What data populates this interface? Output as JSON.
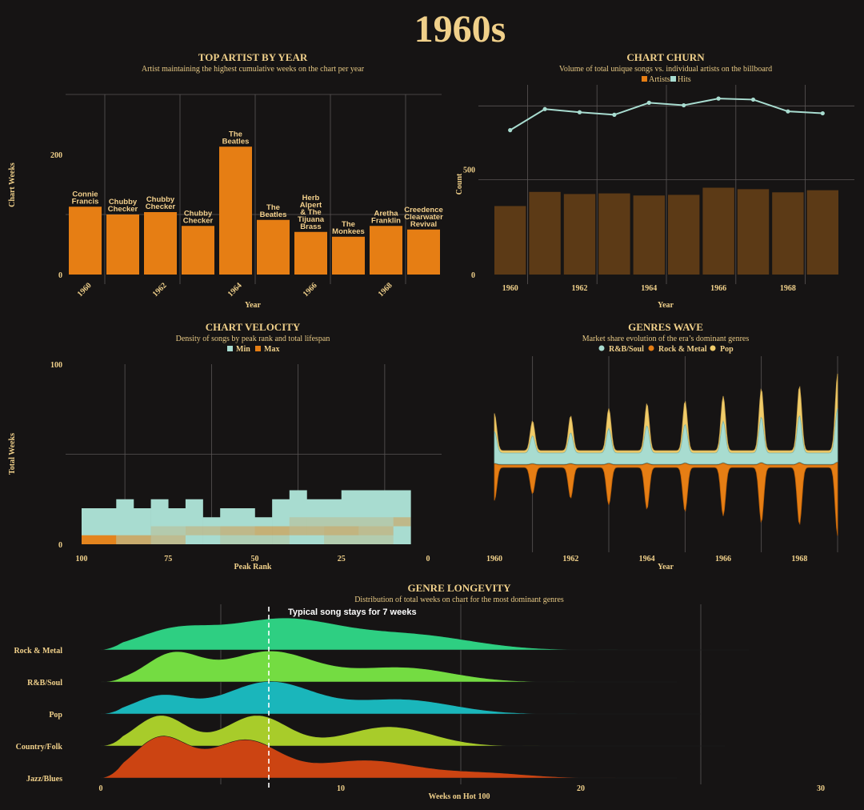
{
  "page_title": "1960s",
  "colors": {
    "background": "#161414",
    "title": "#f0d08a",
    "orange": "#e67e14",
    "teal": "#a8dcd0",
    "gold": "#f0cc6a",
    "brown": "#5c3a16"
  },
  "chart_data": [
    {
      "id": "top_artist",
      "type": "bar",
      "title": "TOP ARTIST BY YEAR",
      "subtitle": "Artist maintaining the highest cumulative weeks on the chart per year",
      "xlabel": "Year",
      "ylabel": "Chart Weeks",
      "categories": [
        "1960",
        "1961",
        "1962",
        "1963",
        "1964",
        "1965",
        "1966",
        "1967",
        "1968",
        "1969"
      ],
      "tick_labels": [
        "1960",
        "1962",
        "1964",
        "1966",
        "1968"
      ],
      "y_ticks": [
        "0",
        "200"
      ],
      "ylim": [
        0,
        300
      ],
      "values": [
        113,
        100,
        104,
        81,
        213,
        91,
        71,
        63,
        81,
        75
      ],
      "labels": [
        "Connie\nFrancis",
        "Chubby\nChecker",
        "Chubby\nChecker",
        "Chubby\nChecker",
        "The\nBeatles",
        "The\nBeatles",
        "Herb\nAlpert\n& The\nTijuana\nBrass",
        "The\nMonkees",
        "Aretha\nFranklin",
        "Creedence\nClearwater\nRevival"
      ]
    },
    {
      "id": "chart_churn",
      "type": "bar",
      "title": "CHART CHURN",
      "subtitle": "Volume of total unique songs vs. individual artists on the billboard",
      "xlabel": "Year",
      "ylabel": "Count",
      "legend": [
        "Artists",
        "Hits"
      ],
      "legend_position": "top",
      "categories": [
        "1960",
        "1961",
        "1962",
        "1963",
        "1964",
        "1965",
        "1966",
        "1967",
        "1968",
        "1969"
      ],
      "tick_labels": [
        "1960",
        "1962",
        "1964",
        "1966",
        "1968"
      ],
      "y_ticks": [
        "0",
        "500"
      ],
      "ylim": [
        0,
        900
      ],
      "series": [
        {
          "name": "Artists",
          "values": [
            325,
            392,
            382,
            385,
            375,
            378,
            412,
            405,
            390,
            400
          ]
        },
        {
          "name": "Hits",
          "values": [
            685,
            785,
            770,
            758,
            815,
            803,
            835,
            830,
            774,
            765
          ]
        }
      ]
    },
    {
      "id": "chart_velocity",
      "type": "heatmap",
      "title": "CHART VELOCITY",
      "subtitle": "Density of songs by peak rank and total lifespan",
      "xlabel": "Peak Rank",
      "ylabel": "Total Weeks",
      "legend": [
        "Min",
        "Max"
      ],
      "x_ticks": [
        "100",
        "75",
        "50",
        "25",
        "0"
      ],
      "y_ticks": [
        "0",
        "100"
      ],
      "xlim": [
        100,
        0
      ],
      "ylim": [
        0,
        100
      ],
      "columns": [
        {
          "x0": 100,
          "x1": 90,
          "top": 20
        },
        {
          "x0": 90,
          "x1": 85,
          "top": 25
        },
        {
          "x0": 85,
          "x1": 80,
          "top": 20
        },
        {
          "x0": 80,
          "x1": 75,
          "top": 25
        },
        {
          "x0": 75,
          "x1": 70,
          "top": 20
        },
        {
          "x0": 70,
          "x1": 65,
          "top": 25
        },
        {
          "x0": 65,
          "x1": 60,
          "top": 15
        },
        {
          "x0": 60,
          "x1": 50,
          "top": 20
        },
        {
          "x0": 50,
          "x1": 45,
          "top": 15
        },
        {
          "x0": 45,
          "x1": 40,
          "top": 25
        },
        {
          "x0": 40,
          "x1": 35,
          "top": 30
        },
        {
          "x0": 35,
          "x1": 25,
          "top": 25
        },
        {
          "x0": 25,
          "x1": 5,
          "top": 30
        }
      ],
      "hot_cells": [
        {
          "x0": 100,
          "x1": 90,
          "y0": 0,
          "y1": 5,
          "level": 1.0
        },
        {
          "x0": 90,
          "x1": 80,
          "y0": 0,
          "y1": 5,
          "level": 0.55
        },
        {
          "x0": 80,
          "x1": 70,
          "y0": 0,
          "y1": 5,
          "level": 0.35
        },
        {
          "x0": 80,
          "x1": 70,
          "y0": 5,
          "y1": 10,
          "level": 0.2
        },
        {
          "x0": 70,
          "x1": 60,
          "y0": 5,
          "y1": 10,
          "level": 0.3
        },
        {
          "x0": 60,
          "x1": 50,
          "y0": 5,
          "y1": 10,
          "level": 0.4
        },
        {
          "x0": 50,
          "x1": 40,
          "y0": 5,
          "y1": 10,
          "level": 0.5
        },
        {
          "x0": 40,
          "x1": 30,
          "y0": 5,
          "y1": 10,
          "level": 0.4
        },
        {
          "x0": 30,
          "x1": 20,
          "y0": 5,
          "y1": 10,
          "level": 0.45
        },
        {
          "x0": 20,
          "x1": 10,
          "y0": 5,
          "y1": 10,
          "level": 0.35
        },
        {
          "x0": 10,
          "x1": 5,
          "y0": 10,
          "y1": 15,
          "level": 0.4
        },
        {
          "x0": 40,
          "x1": 10,
          "y0": 10,
          "y1": 15,
          "level": 0.2
        },
        {
          "x0": 60,
          "x1": 40,
          "y0": 0,
          "y1": 5,
          "level": 0.15
        },
        {
          "x0": 30,
          "x1": 10,
          "y0": 0,
          "y1": 5,
          "level": 0.18
        }
      ]
    },
    {
      "id": "genres_wave",
      "type": "area",
      "title": "GENRES WAVE",
      "subtitle": "Market share evolution of the era’s dominant genres",
      "xlabel": "Year",
      "legend": [
        "R&B/Soul",
        "Rock & Metal",
        "Pop"
      ],
      "legend_position": "top",
      "x_ticks": [
        "1960",
        "1962",
        "1964",
        "1966",
        "1968"
      ],
      "xlim": [
        1960,
        1969
      ],
      "peaks": [
        1960,
        1961,
        1962,
        1963,
        1964,
        1965,
        1966,
        1967,
        1968,
        1969
      ],
      "peak_amplitude": [
        0.75,
        0.6,
        0.7,
        0.85,
        0.95,
        1.0,
        1.1,
        1.25,
        1.3,
        1.55
      ]
    },
    {
      "id": "genre_longevity",
      "type": "area",
      "title": "GENRE LONGEVITY",
      "subtitle": "Distribution of total weeks on chart for the most dominant genres",
      "xlabel": "Weeks on Hot 100",
      "x_ticks": [
        "0",
        "10",
        "20",
        "30"
      ],
      "xlim": [
        0,
        30
      ],
      "annotation": "Typical song stays for 7 weeks",
      "median": 7,
      "series": [
        {
          "name": "Rock & Metal",
          "color": "#2ecf82",
          "tail": 27
        },
        {
          "name": "R&B/Soul",
          "color": "#74dc42",
          "tail": 24
        },
        {
          "name": "Pop",
          "color": "#1ab6bb",
          "tail": 25
        },
        {
          "name": "Country/Folk",
          "color": "#a8cc2a",
          "tail": 26
        },
        {
          "name": "Jazz/Blues",
          "color": "#cc4412",
          "tail": 24
        }
      ]
    }
  ]
}
